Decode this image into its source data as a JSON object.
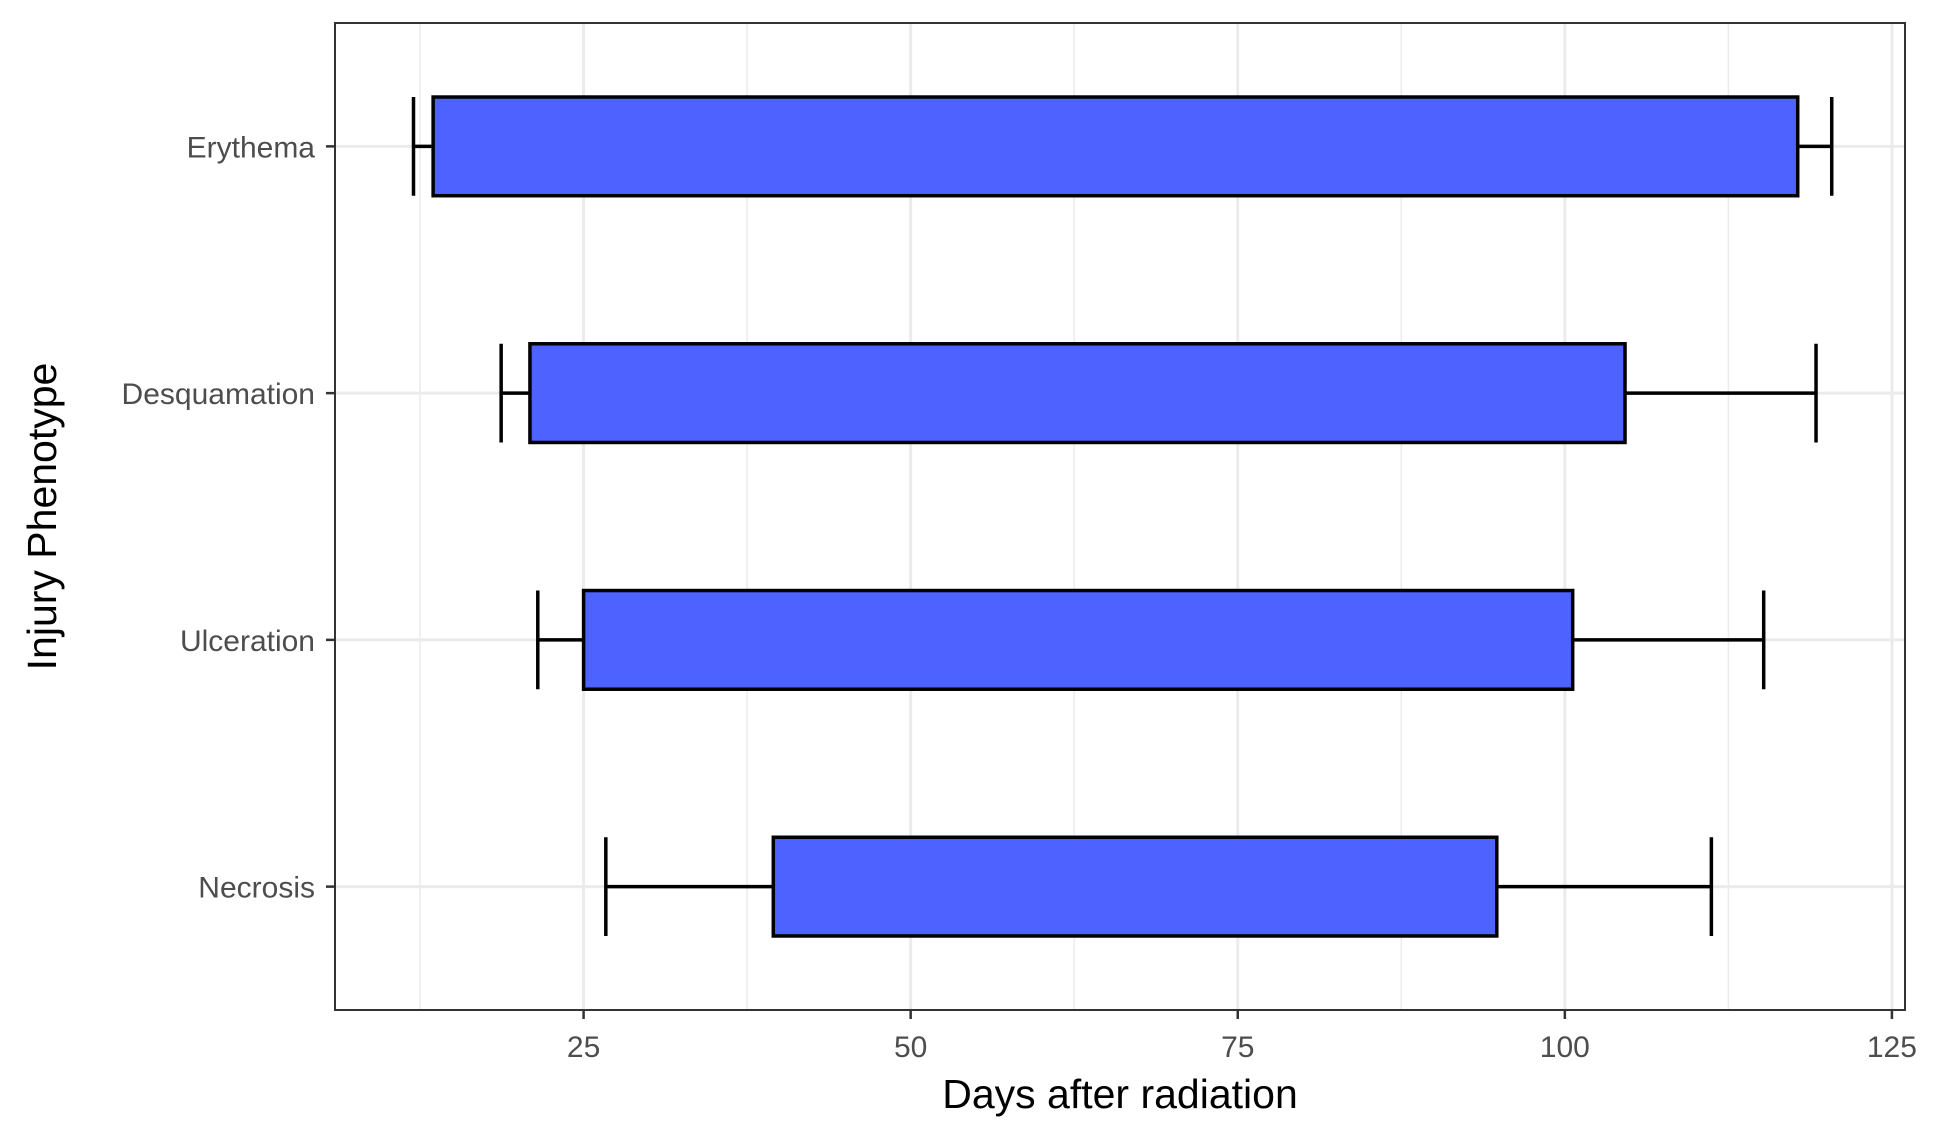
{
  "chart_data": {
    "type": "bar",
    "orientation": "horizontal",
    "xlabel": "Days after radiation",
    "ylabel": "Injury Phenotype",
    "xlim": [
      6,
      126
    ],
    "x_ticks": [
      25,
      50,
      75,
      100,
      125
    ],
    "x_minor_ticks": [
      12.5,
      37.5,
      62.5,
      87.5,
      112.5
    ],
    "categories": [
      "Erythema",
      "Desquamation",
      "Ulceration",
      "Necrosis"
    ],
    "series": [
      {
        "bar_start": [
          13.5,
          20.9,
          25.0,
          39.5
        ],
        "bar_end": [
          117.8,
          104.6,
          100.6,
          94.8
        ],
        "error_low": [
          12.0,
          18.7,
          21.5,
          26.7
        ],
        "error_high": [
          120.4,
          119.2,
          115.2,
          111.2
        ]
      }
    ],
    "bar_color": "#4d62ff",
    "grid": true,
    "legend": "none"
  }
}
